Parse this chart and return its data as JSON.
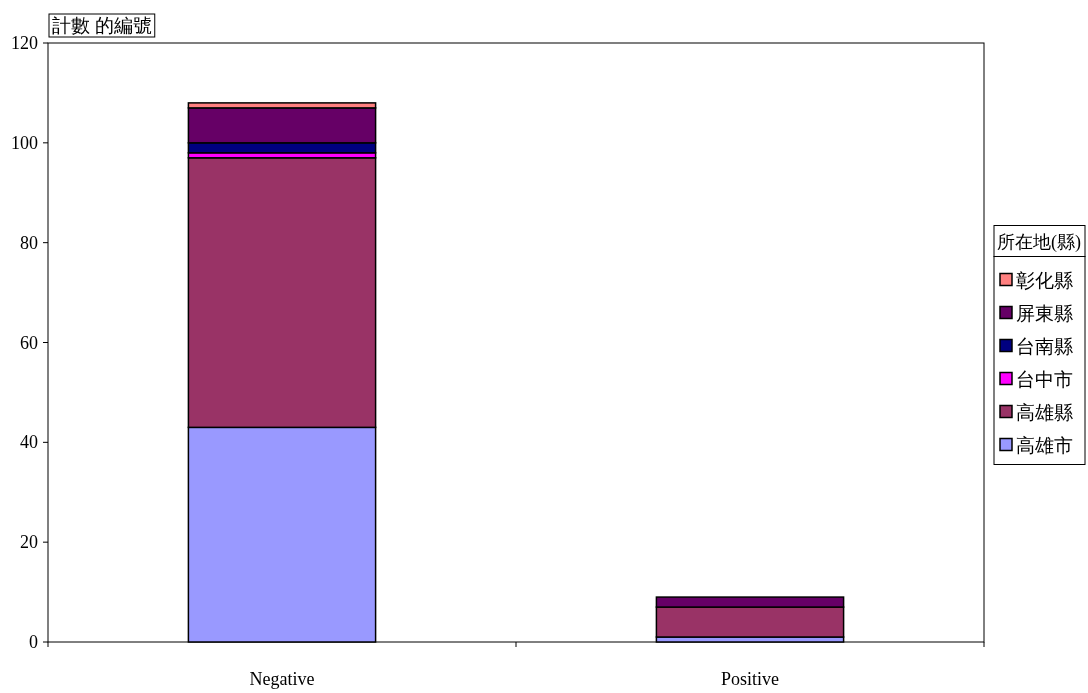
{
  "chart_data": {
    "type": "bar",
    "stacked": true,
    "ylabel": "計數 的編號",
    "legend_title": "所在地(縣)",
    "legend": "right",
    "grid": false,
    "categories": [
      "Negative",
      "Positive"
    ],
    "ylim": [
      0,
      120
    ],
    "yticks": [
      0,
      20,
      40,
      60,
      80,
      100,
      120
    ],
    "series": [
      {
        "name": "高雄市",
        "color": "#9999ff",
        "values": [
          43,
          1
        ]
      },
      {
        "name": "高雄縣",
        "color": "#993366",
        "values": [
          54,
          6
        ]
      },
      {
        "name": "台中市",
        "color": "#ff00ff",
        "values": [
          1,
          0
        ]
      },
      {
        "name": "台南縣",
        "color": "#000080",
        "values": [
          2,
          0
        ]
      },
      {
        "name": "屏東縣",
        "color": "#660066",
        "values": [
          7,
          2
        ]
      },
      {
        "name": "彰化縣",
        "color": "#ff8080",
        "values": [
          1,
          0
        ]
      }
    ]
  }
}
